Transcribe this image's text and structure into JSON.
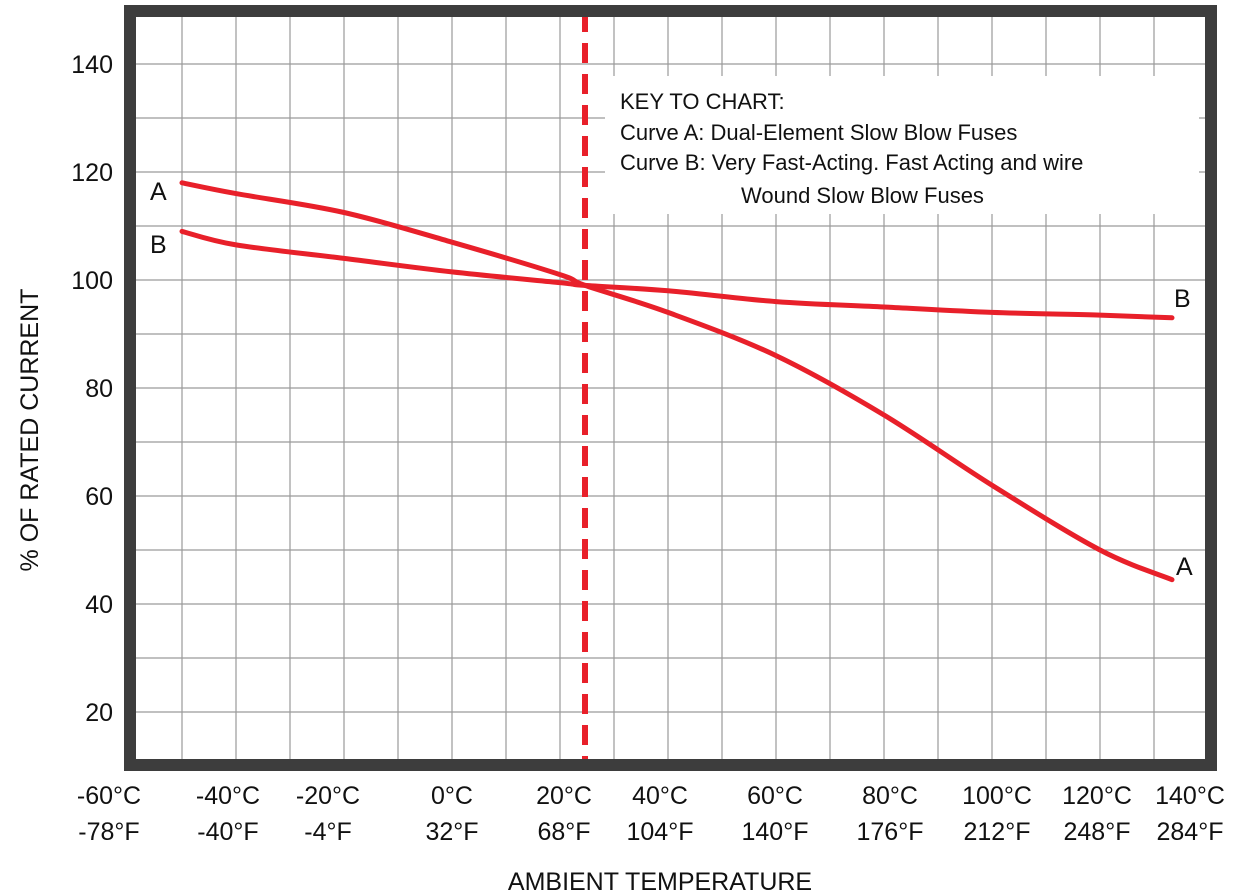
{
  "chart_data": {
    "type": "line",
    "title": "",
    "xlabel": "AMBIENT TEMPERATURE",
    "ylabel": "% OF RATED CURRENT",
    "ylim": [
      10,
      150
    ],
    "yticks": [
      20,
      40,
      60,
      80,
      100,
      120,
      140
    ],
    "x_tick_labels": [
      {
        "c": "-60°C",
        "f": "-78°F"
      },
      {
        "c": "-40°C",
        "f": "-40°F"
      },
      {
        "c": "-20°C",
        "f": "-4°F"
      },
      {
        "c": "0°C",
        "f": "32°F"
      },
      {
        "c": "20°C",
        "f": "68°F"
      },
      {
        "c": "40°C",
        "f": "104°F"
      },
      {
        "c": "60°C",
        "f": "140°F"
      },
      {
        "c": "80°C",
        "f": "176°F"
      },
      {
        "c": "100°C",
        "f": "212°F"
      },
      {
        "c": "120°C",
        "f": "248°F"
      },
      {
        "c": "140°C",
        "f": "284°F"
      }
    ],
    "reference_line": {
      "style": "dashed",
      "color": "#e8202a",
      "x_celsius": 25
    },
    "grid": true,
    "series": [
      {
        "name": "A",
        "color": "#e8202a",
        "x_celsius": [
          -60,
          -40,
          -20,
          0,
          20,
          25,
          40,
          60,
          80,
          100,
          120,
          140
        ],
        "y": [
          118,
          116,
          112.5,
          107,
          101,
          99,
          94,
          86,
          75,
          62,
          50,
          44.5
        ]
      },
      {
        "name": "B",
        "color": "#e8202a",
        "x_celsius": [
          -60,
          -40,
          -20,
          0,
          20,
          25,
          40,
          60,
          80,
          100,
          120,
          140
        ],
        "y": [
          109,
          106.5,
          104,
          101.5,
          99.5,
          99,
          98,
          96,
          95,
          94,
          93.5,
          93
        ]
      }
    ],
    "key": {
      "heading": "KEY TO CHART:",
      "line_a": "Curve A: Dual-Element Slow Blow Fuses",
      "line_b1": "Curve B: Very Fast-Acting. Fast Acting and wire",
      "line_b2": "Wound Slow Blow Fuses"
    },
    "curve_labels": {
      "a": "A",
      "b": "B"
    }
  }
}
